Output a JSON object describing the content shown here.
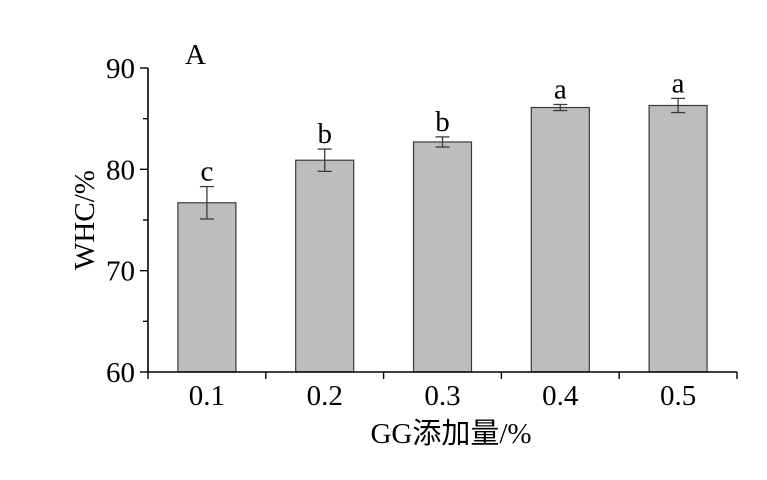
{
  "chart_data": {
    "type": "bar",
    "panel_label": "A",
    "title": "",
    "xlabel": "GG添加量/%",
    "ylabel": "WHC/%",
    "categories": [
      "0.1",
      "0.2",
      "0.3",
      "0.4",
      "0.5"
    ],
    "values": [
      76.7,
      80.9,
      82.7,
      86.1,
      86.3
    ],
    "errors": [
      1.6,
      1.1,
      0.5,
      0.3,
      0.7
    ],
    "data_labels": [
      "c",
      "b",
      "b",
      "a",
      "a"
    ],
    "ylim": [
      60,
      90
    ],
    "yticks": [
      60,
      70,
      80,
      90
    ],
    "ytick_labels": [
      "60",
      "70",
      "80",
      "90"
    ],
    "grid": false,
    "legend": "none",
    "bar_color": "#bdbdbd"
  }
}
